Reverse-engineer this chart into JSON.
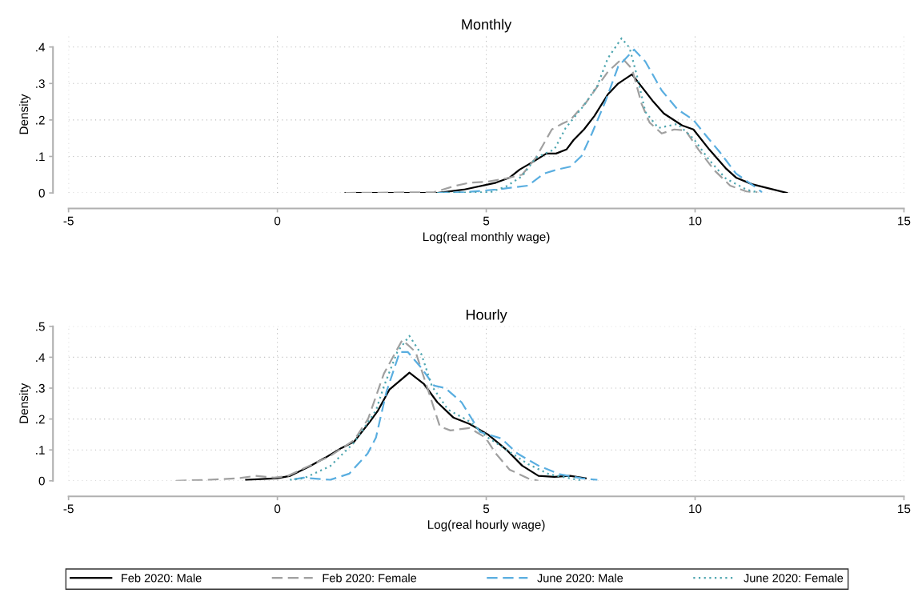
{
  "chart_data": [
    {
      "type": "line",
      "title": "Monthly",
      "xlabel": "Log(real monthly wage)",
      "ylabel": "Density",
      "xlim": [
        -5,
        15
      ],
      "ylim": [
        0,
        0.43
      ],
      "xticks": [
        -5,
        0,
        5,
        10,
        15
      ],
      "yticks": [
        0,
        {
          "value": 0.1,
          "label": ".1"
        },
        {
          "value": 0.2,
          "label": ".2"
        },
        {
          "value": 0.3,
          "label": ".3"
        },
        {
          "value": 0.4,
          "label": ".4"
        }
      ],
      "grid": true,
      "legend": "bottom",
      "series": [
        {
          "name": "Feb 2020: Male",
          "color": "#000000",
          "line_style": "solid",
          "x": [
            1.63,
            3.83,
            4.46,
            5.23,
            5.56,
            5.8,
            6.13,
            6.44,
            6.67,
            6.92,
            7.09,
            7.34,
            7.59,
            7.91,
            8.16,
            8.49,
            9.0,
            9.25,
            9.69,
            9.96,
            10.34,
            10.73,
            10.98,
            11.36,
            12.2
          ],
          "values": [
            0,
            0,
            0.009,
            0.028,
            0.042,
            0.064,
            0.086,
            0.108,
            0.108,
            0.119,
            0.145,
            0.174,
            0.211,
            0.27,
            0.3,
            0.325,
            0.25,
            0.218,
            0.185,
            0.174,
            0.119,
            0.068,
            0.042,
            0.024,
            0
          ]
        },
        {
          "name": "Feb 2020: Female",
          "color": "#a0a0a0",
          "line_style": "dashed",
          "x": [
            1.63,
            3.75,
            4.21,
            4.6,
            5.04,
            5.48,
            5.86,
            6.19,
            6.57,
            6.82,
            7.01,
            7.39,
            7.91,
            8.26,
            8.49,
            8.72,
            8.91,
            9.2,
            9.5,
            9.77,
            10.08,
            10.46,
            10.84,
            11.23,
            11.49
          ],
          "values": [
            0,
            0.002,
            0.018,
            0.028,
            0.031,
            0.04,
            0.05,
            0.097,
            0.174,
            0.19,
            0.2,
            0.248,
            0.332,
            0.369,
            0.34,
            0.244,
            0.193,
            0.163,
            0.174,
            0.171,
            0.119,
            0.062,
            0.02,
            0.004,
            0.002
          ]
        },
        {
          "name": "June 2020: Male",
          "color": "#5aaee0",
          "line_style": "dashed",
          "x": [
            3.83,
            4.46,
            5.23,
            6.0,
            6.38,
            6.7,
            7.01,
            7.28,
            7.53,
            7.85,
            8.16,
            8.54,
            8.81,
            9.2,
            9.58,
            9.96,
            10.27,
            10.59,
            10.98,
            11.42,
            11.6
          ],
          "values": [
            0,
            0.002,
            0.009,
            0.02,
            0.053,
            0.064,
            0.072,
            0.101,
            0.163,
            0.25,
            0.347,
            0.393,
            0.36,
            0.281,
            0.229,
            0.2,
            0.156,
            0.112,
            0.053,
            0.018,
            0.002
          ]
        },
        {
          "name": "June 2020: Female",
          "color": "#4fa6b0",
          "line_style": "dotted",
          "x": [
            3.83,
            5.1,
            5.48,
            5.86,
            6.19,
            6.63,
            6.9,
            7.34,
            7.66,
            7.91,
            8.24,
            8.43,
            8.62,
            8.81,
            9.12,
            9.58,
            9.96,
            10.34,
            10.73,
            11.23,
            11.49
          ],
          "values": [
            0,
            0.002,
            0.018,
            0.046,
            0.097,
            0.119,
            0.178,
            0.24,
            0.294,
            0.369,
            0.424,
            0.398,
            0.316,
            0.222,
            0.178,
            0.189,
            0.149,
            0.09,
            0.04,
            0.009,
            0.002
          ]
        }
      ]
    },
    {
      "type": "line",
      "title": "Hourly",
      "xlabel": "Log(real hourly wage)",
      "ylabel": "Density",
      "xlim": [
        -5,
        15
      ],
      "ylim": [
        0,
        0.5
      ],
      "xticks": [
        -5,
        0,
        5,
        10,
        15
      ],
      "yticks": [
        0,
        {
          "value": 0.1,
          "label": ".1"
        },
        {
          "value": 0.2,
          "label": ".2"
        },
        {
          "value": 0.3,
          "label": ".3"
        },
        {
          "value": 0.4,
          "label": ".4"
        },
        {
          "value": 0.5,
          "label": ".5"
        }
      ],
      "grid": true,
      "series": [
        {
          "color": "#000000",
          "line_style": "solid",
          "x": [
            -0.75,
            0,
            0.31,
            0.77,
            1.15,
            1.53,
            1.84,
            2.22,
            2.41,
            2.68,
            3.16,
            3.51,
            3.83,
            4.21,
            4.6,
            5.04,
            5.48,
            5.86,
            6.25,
            6.63,
            7.01,
            7.38
          ],
          "values": [
            0.003,
            0.008,
            0.016,
            0.047,
            0.075,
            0.106,
            0.127,
            0.192,
            0.228,
            0.295,
            0.35,
            0.313,
            0.254,
            0.205,
            0.184,
            0.15,
            0.101,
            0.049,
            0.016,
            0.013,
            0.016,
            0.008
          ]
        },
        {
          "color": "#a0a0a0",
          "line_style": "dashed",
          "x": [
            -2.43,
            -1.67,
            -0.96,
            -0.52,
            -0.08,
            0.25,
            0.77,
            1.26,
            1.84,
            2.17,
            2.55,
            2.99,
            3.31,
            3.64,
            3.89,
            4.14,
            4.6,
            4.98,
            5.23,
            5.56,
            6.0,
            6.25
          ],
          "values": [
            0,
            0.003,
            0.008,
            0.016,
            0.01,
            0.016,
            0.049,
            0.08,
            0.132,
            0.2,
            0.347,
            0.456,
            0.417,
            0.28,
            0.176,
            0.163,
            0.171,
            0.14,
            0.088,
            0.036,
            0.008,
            0
          ]
        },
        {
          "color": "#5aaee0",
          "line_style": "dashed",
          "x": [
            0.4,
            0.63,
            1.26,
            1.72,
            2.16,
            2.36,
            2.61,
            2.93,
            3.12,
            3.45,
            3.75,
            4.02,
            4.41,
            4.85,
            5.36,
            5.75,
            6.25,
            6.76,
            7.28,
            7.66
          ],
          "values": [
            0.005,
            0.01,
            0.003,
            0.023,
            0.088,
            0.14,
            0.288,
            0.417,
            0.417,
            0.365,
            0.308,
            0.3,
            0.254,
            0.158,
            0.137,
            0.088,
            0.049,
            0.021,
            0.008,
            0.003
          ]
        },
        {
          "color": "#4fa6b0",
          "line_style": "dotted",
          "x": [
            0.3,
            0.63,
            1.26,
            1.84,
            2.36,
            2.55,
            2.87,
            3.16,
            3.45,
            3.7,
            4.08,
            4.6,
            5.04,
            5.48,
            6.0,
            6.51,
            7.01,
            7.3
          ],
          "values": [
            0.003,
            0.008,
            0.047,
            0.124,
            0.228,
            0.306,
            0.417,
            0.469,
            0.409,
            0.306,
            0.231,
            0.192,
            0.14,
            0.101,
            0.054,
            0.021,
            0.008,
            0
          ]
        }
      ]
    }
  ]
}
